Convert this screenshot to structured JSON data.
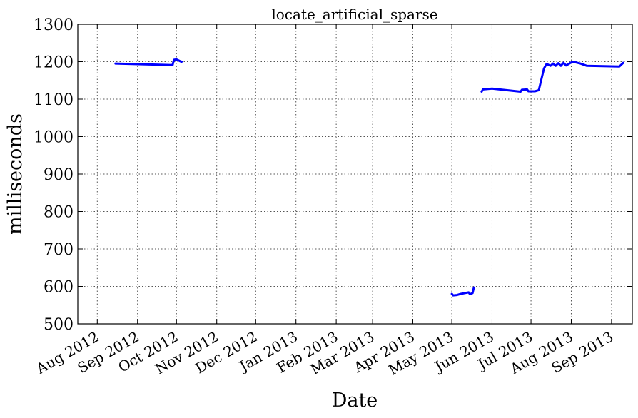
{
  "chart_data": {
    "type": "line",
    "title": "locate_artificial_sparse",
    "xlabel": "Date",
    "ylabel": "milliseconds",
    "ylim": [
      500,
      1300
    ],
    "yticks": [
      500,
      600,
      700,
      800,
      900,
      1000,
      1100,
      1200,
      1300
    ],
    "xlim": [
      "2012-07-17",
      "2013-09-17"
    ],
    "xticks": [
      {
        "date": "2012-08-01",
        "label": "Aug 2012"
      },
      {
        "date": "2012-09-01",
        "label": "Sep 2012"
      },
      {
        "date": "2012-10-01",
        "label": "Oct 2012"
      },
      {
        "date": "2012-11-01",
        "label": "Nov 2012"
      },
      {
        "date": "2012-12-01",
        "label": "Dec 2012"
      },
      {
        "date": "2013-01-01",
        "label": "Jan 2013"
      },
      {
        "date": "2013-02-01",
        "label": "Feb 2013"
      },
      {
        "date": "2013-03-01",
        "label": "Mar 2013"
      },
      {
        "date": "2013-04-01",
        "label": "Apr 2013"
      },
      {
        "date": "2013-05-01",
        "label": "May 2013"
      },
      {
        "date": "2013-06-01",
        "label": "Jun 2013"
      },
      {
        "date": "2013-07-01",
        "label": "Jul 2013"
      },
      {
        "date": "2013-08-01",
        "label": "Aug 2013"
      },
      {
        "date": "2013-09-01",
        "label": "Sep 2013"
      }
    ],
    "grid": true,
    "series_color": "#0000ff",
    "segments": [
      [
        {
          "x": "2012-08-15",
          "y": 1195
        },
        {
          "x": "2012-09-28",
          "y": 1191
        },
        {
          "x": "2012-09-29",
          "y": 1205
        },
        {
          "x": "2012-10-01",
          "y": 1206
        },
        {
          "x": "2012-10-04",
          "y": 1201
        },
        {
          "x": "2012-10-05",
          "y": 1200
        }
      ],
      [
        {
          "x": "2013-05-01",
          "y": 580
        },
        {
          "x": "2013-05-02",
          "y": 576
        },
        {
          "x": "2013-05-05",
          "y": 577
        },
        {
          "x": "2013-05-08",
          "y": 580
        },
        {
          "x": "2013-05-11",
          "y": 582
        },
        {
          "x": "2013-05-14",
          "y": 584
        },
        {
          "x": "2013-05-15",
          "y": 579
        },
        {
          "x": "2013-05-17",
          "y": 582
        },
        {
          "x": "2013-05-18",
          "y": 597
        }
      ],
      [
        {
          "x": "2013-05-24",
          "y": 1120
        },
        {
          "x": "2013-05-25",
          "y": 1126
        },
        {
          "x": "2013-06-01",
          "y": 1128
        },
        {
          "x": "2013-06-23",
          "y": 1120
        },
        {
          "x": "2013-06-24",
          "y": 1125
        },
        {
          "x": "2013-06-28",
          "y": 1126
        },
        {
          "x": "2013-06-29",
          "y": 1121
        },
        {
          "x": "2013-07-04",
          "y": 1121
        },
        {
          "x": "2013-07-07",
          "y": 1124
        },
        {
          "x": "2013-07-11",
          "y": 1182
        },
        {
          "x": "2013-07-13",
          "y": 1194
        },
        {
          "x": "2013-07-16",
          "y": 1189
        },
        {
          "x": "2013-07-18",
          "y": 1195
        },
        {
          "x": "2013-07-20",
          "y": 1189
        },
        {
          "x": "2013-07-22",
          "y": 1196
        },
        {
          "x": "2013-07-24",
          "y": 1189
        },
        {
          "x": "2013-07-26",
          "y": 1197
        },
        {
          "x": "2013-07-28",
          "y": 1190
        },
        {
          "x": "2013-08-02",
          "y": 1200
        },
        {
          "x": "2013-08-08",
          "y": 1195
        },
        {
          "x": "2013-08-13",
          "y": 1189
        },
        {
          "x": "2013-09-07",
          "y": 1187
        },
        {
          "x": "2013-09-10",
          "y": 1197
        }
      ]
    ]
  }
}
